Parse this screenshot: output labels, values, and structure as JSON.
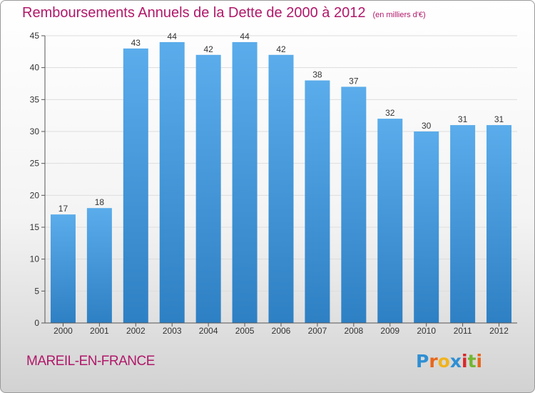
{
  "header": {
    "title": "Remboursements Annuels de la Dette de 2000 à 2012",
    "unit": "(en milliers d'€)"
  },
  "footer": {
    "place": "MAREIL-EN-FRANCE",
    "logo_letters": [
      "P",
      "r",
      "o",
      "x",
      "i",
      "t",
      "i"
    ],
    "logo_colors": [
      "#2f8fd3",
      "#e8661b",
      "#f1b31c",
      "#2f8fd3",
      "#d8282c",
      "#73b632",
      "#e8661b"
    ]
  },
  "colors": {
    "title": "#b01869",
    "bar_light": "#5aaceb",
    "bar_dark": "#2e80c4",
    "grid": "#dddddd",
    "axis": "#555555"
  },
  "chart_data": {
    "type": "bar",
    "categories": [
      "2000",
      "2001",
      "2002",
      "2003",
      "2004",
      "2005",
      "2006",
      "2007",
      "2008",
      "2009",
      "2010",
      "2011",
      "2012"
    ],
    "values": [
      17,
      18,
      43,
      44,
      42,
      44,
      42,
      38,
      37,
      32,
      30,
      31,
      31
    ],
    "title": "Remboursements Annuels de la Dette de 2000 à 2012",
    "subtitle": "(en milliers d'€)",
    "ylim": [
      0,
      45
    ],
    "yticks": [
      0,
      5,
      10,
      15,
      20,
      25,
      30,
      35,
      40,
      45
    ],
    "grid": true,
    "data_labels": true
  }
}
